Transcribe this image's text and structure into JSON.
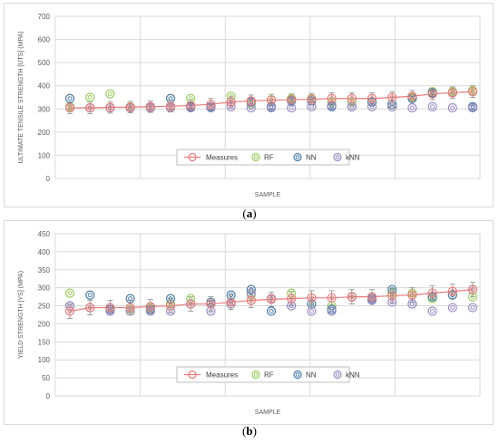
{
  "chart_data": [
    {
      "type": "scatter",
      "panel_label": "a",
      "title": "",
      "xlabel": "SAMPLE",
      "ylabel": "ULTIMATE TENSILE STRENGTH [UTS] (MPA)",
      "ylim": [
        0,
        700
      ],
      "yticks": [
        "0",
        "100",
        "200",
        "300",
        "400",
        "500",
        "600",
        "700"
      ],
      "grid": true,
      "legend_position": "bottom-center-inside",
      "x": [
        1,
        2,
        3,
        4,
        5,
        6,
        7,
        8,
        9,
        10,
        11,
        12,
        13,
        14,
        15,
        16,
        17,
        18,
        19,
        20,
        21
      ],
      "series": [
        {
          "name": "Measures",
          "values": [
            305,
            305,
            307,
            308,
            310,
            312,
            315,
            320,
            330,
            335,
            338,
            340,
            342,
            345,
            345,
            345,
            350,
            355,
            365,
            370,
            375
          ]
        },
        {
          "name": "RF",
          "values": [
            310,
            350,
            365,
            310,
            310,
            310,
            345,
            310,
            355,
            320,
            340,
            345,
            345,
            330,
            330,
            330,
            310,
            350,
            375,
            375,
            380
          ]
        },
        {
          "name": "NN",
          "values": [
            345,
            305,
            305,
            305,
            305,
            345,
            310,
            310,
            330,
            330,
            310,
            335,
            335,
            310,
            310,
            330,
            320,
            345,
            370,
            370,
            310
          ]
        },
        {
          "name": "kNN",
          "values": [
            305,
            305,
            305,
            305,
            305,
            305,
            305,
            305,
            310,
            305,
            305,
            305,
            310,
            315,
            310,
            310,
            310,
            305,
            310,
            305,
            305
          ]
        }
      ],
      "error_bar": 25,
      "colors": {
        "Measures": "#e87b7b",
        "RF": "#9ccc65",
        "NN": "#4a7ba6",
        "kNN": "#9b8bc2"
      }
    },
    {
      "type": "scatter",
      "panel_label": "b",
      "title": "",
      "xlabel": "SAMPLE",
      "ylabel": "YIELD STRENGTH [YS] (MPA)",
      "ylim": [
        0,
        450
      ],
      "yticks": [
        "0",
        "50",
        "100",
        "150",
        "200",
        "250",
        "300",
        "350",
        "400",
        "450"
      ],
      "grid": true,
      "legend_position": "bottom-center-inside",
      "x": [
        1,
        2,
        3,
        4,
        5,
        6,
        7,
        8,
        9,
        10,
        11,
        12,
        13,
        14,
        15,
        16,
        17,
        18,
        19,
        20,
        21
      ],
      "series": [
        {
          "name": "Measures",
          "values": [
            235,
            245,
            245,
            245,
            248,
            250,
            255,
            255,
            260,
            265,
            268,
            270,
            272,
            272,
            275,
            275,
            278,
            280,
            285,
            290,
            295
          ]
        },
        {
          "name": "RF",
          "values": [
            285,
            245,
            240,
            240,
            245,
            255,
            270,
            255,
            255,
            280,
            270,
            285,
            255,
            250,
            275,
            270,
            285,
            285,
            270,
            280,
            275
          ]
        },
        {
          "name": "NN",
          "values": [
            250,
            280,
            240,
            270,
            240,
            270,
            255,
            260,
            280,
            295,
            235,
            250,
            255,
            240,
            275,
            270,
            295,
            255,
            275,
            280,
            295
          ]
        },
        {
          "name": "kNN",
          "values": [
            250,
            245,
            235,
            235,
            235,
            235,
            255,
            235,
            255,
            285,
            270,
            250,
            235,
            235,
            275,
            265,
            260,
            255,
            235,
            245,
            245
          ]
        }
      ],
      "error_bar": 20,
      "colors": {
        "Measures": "#e87b7b",
        "RF": "#9ccc65",
        "NN": "#4a7ba6",
        "kNN": "#9b8bc2"
      }
    }
  ],
  "captions": {
    "a": "a",
    "b": "b"
  }
}
